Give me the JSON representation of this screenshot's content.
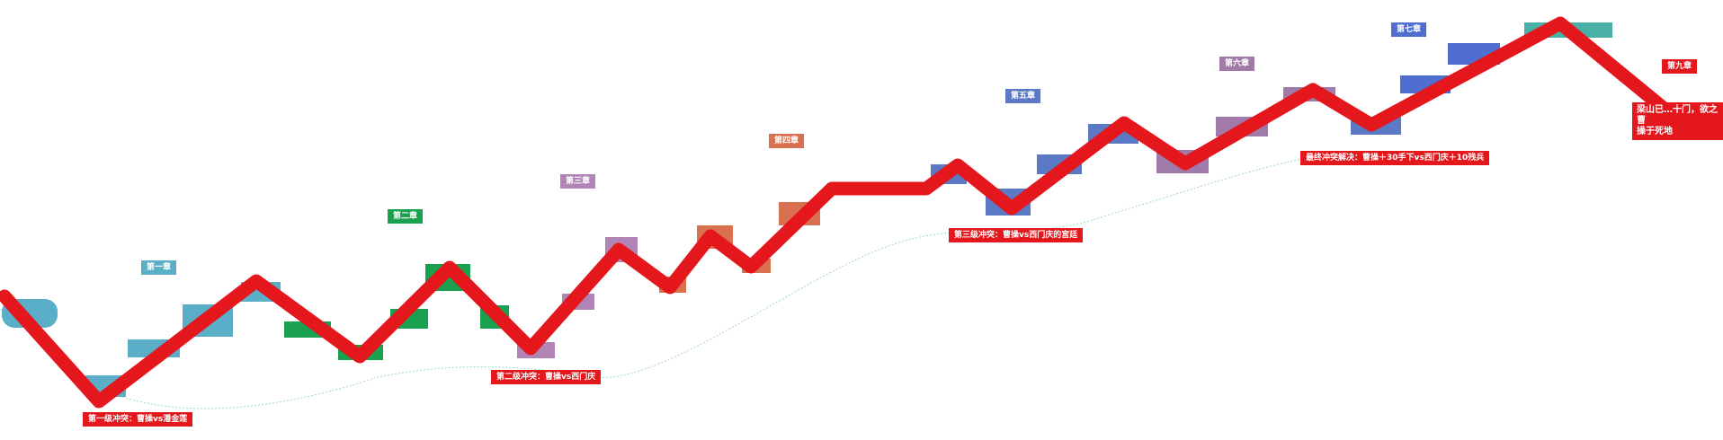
{
  "chapters": [
    {
      "label": "第一章",
      "color": "#5aaec8"
    },
    {
      "label": "第二章",
      "color": "#1aa14f"
    },
    {
      "label": "第三章",
      "color": "#b085b5"
    },
    {
      "label": "第四章",
      "color": "#d9704f"
    },
    {
      "label": "第五章",
      "color": "#5b79c4"
    },
    {
      "label": "第六章",
      "color": "#a07aa8"
    },
    {
      "label": "第七章",
      "color": "#4f6ed0"
    },
    {
      "label": "第九章",
      "color": "#e3171c"
    }
  ],
  "conflicts": [
    {
      "label": "第一级冲突：曹操vs潘金莲"
    },
    {
      "label": "第二级冲突：曹操vs西门庆"
    },
    {
      "label": "第三级冲突：曹操vs西门庆的宫廷"
    },
    {
      "label": "最终冲突解决：曹操＋30手下vs西门庆＋10残兵"
    }
  ],
  "end_note": {
    "line1": "梁山已…十门，欲之曹",
    "line2": "操于死地"
  },
  "colors": {
    "path": "#e3171c",
    "curve": "#9fd8c6"
  }
}
